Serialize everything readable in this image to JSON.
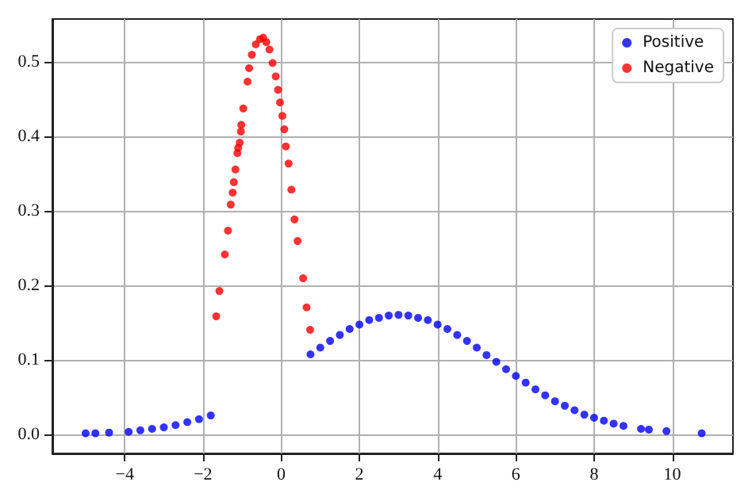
{
  "chart_data": {
    "type": "scatter",
    "marker": "circle",
    "grid": true,
    "legend": "top right",
    "xlim": [
      -5.85,
      11.55
    ],
    "ylim": [
      -0.026,
      0.557
    ],
    "xticks": [
      {
        "value": -4,
        "label": "−4"
      },
      {
        "value": -2,
        "label": "−2"
      },
      {
        "value": 0,
        "label": "0"
      },
      {
        "value": 2,
        "label": "2"
      },
      {
        "value": 4,
        "label": "4"
      },
      {
        "value": 6,
        "label": "6"
      },
      {
        "value": 8,
        "label": "8"
      },
      {
        "value": 10,
        "label": "10"
      }
    ],
    "yticks": [
      {
        "value": 0,
        "label": "0.0"
      },
      {
        "value": 0.1,
        "label": "0.1"
      },
      {
        "value": 0.2,
        "label": "0.2"
      },
      {
        "value": 0.3,
        "label": "0.3"
      },
      {
        "value": 0.4,
        "label": "0.4"
      },
      {
        "value": 0.5,
        "label": "0.5"
      }
    ],
    "series": [
      {
        "name": "Positive",
        "color": "#0000ff",
        "x": [
          -5.0,
          -4.75,
          -4.4,
          -3.9,
          -3.6,
          -3.3,
          -3.0,
          -2.7,
          -2.4,
          -2.1,
          -1.8,
          0.75,
          1.0,
          1.25,
          1.5,
          1.75,
          2.0,
          2.25,
          2.5,
          2.75,
          3.0,
          3.25,
          3.5,
          3.75,
          4.0,
          4.25,
          4.5,
          4.75,
          5.0,
          5.25,
          5.5,
          5.75,
          6.0,
          6.25,
          6.5,
          6.75,
          7.0,
          7.25,
          7.5,
          7.75,
          8.0,
          8.25,
          8.5,
          8.75,
          9.2,
          9.4,
          9.85,
          10.75
        ],
        "values": [
          0.001,
          0.001,
          0.002,
          0.003,
          0.005,
          0.007,
          0.009,
          0.012,
          0.016,
          0.02,
          0.025,
          0.107,
          0.116,
          0.125,
          0.133,
          0.141,
          0.147,
          0.153,
          0.156,
          0.159,
          0.16,
          0.159,
          0.156,
          0.153,
          0.147,
          0.141,
          0.133,
          0.125,
          0.116,
          0.106,
          0.097,
          0.087,
          0.078,
          0.069,
          0.06,
          0.052,
          0.044,
          0.038,
          0.032,
          0.026,
          0.022,
          0.018,
          0.014,
          0.011,
          0.007,
          0.006,
          0.004,
          0.001
        ]
      },
      {
        "name": "Negative",
        "color": "#ff0000",
        "x": [
          -1.66,
          -1.58,
          -1.44,
          -1.36,
          -1.29,
          -1.24,
          -1.21,
          -1.17,
          -1.12,
          -1.1,
          -1.06,
          -1.03,
          -1.02,
          -0.97,
          -0.86,
          -0.82,
          -0.75,
          -0.65,
          -0.54,
          -0.46,
          -0.38,
          -0.3,
          -0.22,
          -0.14,
          -0.08,
          -0.03,
          0.03,
          0.08,
          0.12,
          0.19,
          0.26,
          0.34,
          0.42,
          0.56,
          0.65,
          0.74
        ],
        "values": [
          0.158,
          0.192,
          0.241,
          0.273,
          0.308,
          0.324,
          0.338,
          0.355,
          0.377,
          0.384,
          0.391,
          0.406,
          0.415,
          0.437,
          0.473,
          0.491,
          0.509,
          0.523,
          0.53,
          0.532,
          0.526,
          0.516,
          0.498,
          0.48,
          0.462,
          0.445,
          0.427,
          0.409,
          0.386,
          0.363,
          0.328,
          0.288,
          0.259,
          0.209,
          0.17,
          0.14
        ]
      }
    ]
  }
}
